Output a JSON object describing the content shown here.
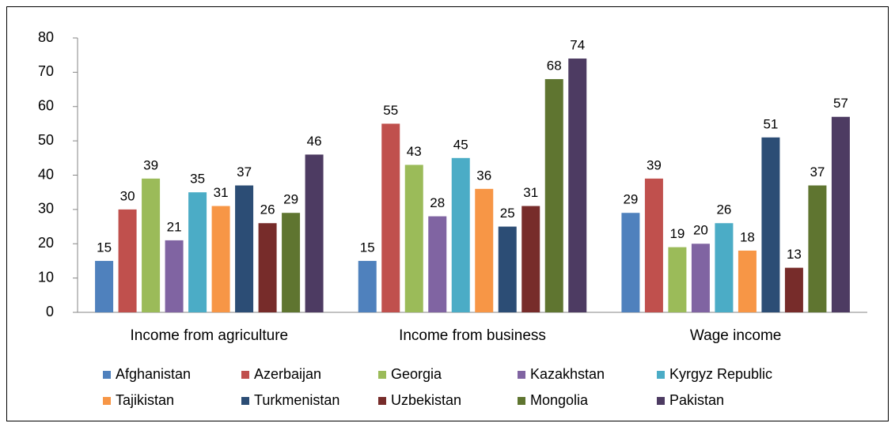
{
  "chart_data": {
    "type": "bar",
    "categories": [
      "Income from agriculture",
      "Income from business",
      "Wage income"
    ],
    "series": [
      {
        "name": "Afghanistan",
        "color": "#4f81bd",
        "values": [
          15,
          15,
          29
        ]
      },
      {
        "name": "Azerbaijan",
        "color": "#c0504d",
        "values": [
          30,
          55,
          39
        ]
      },
      {
        "name": "Georgia",
        "color": "#9bbb59",
        "values": [
          39,
          43,
          19
        ]
      },
      {
        "name": "Kazakhstan",
        "color": "#8064a2",
        "values": [
          21,
          28,
          20
        ]
      },
      {
        "name": "Kyrgyz Republic",
        "color": "#4bacc6",
        "values": [
          35,
          45,
          26
        ]
      },
      {
        "name": "Tajikistan",
        "color": "#f79646",
        "values": [
          31,
          36,
          18
        ]
      },
      {
        "name": "Turkmenistan",
        "color": "#2c4d75",
        "values": [
          37,
          25,
          51
        ]
      },
      {
        "name": "Uzbekistan",
        "color": "#772c2a",
        "values": [
          26,
          31,
          13
        ]
      },
      {
        "name": "Mongolia",
        "color": "#5f7530",
        "values": [
          29,
          68,
          37
        ]
      },
      {
        "name": "Pakistan",
        "color": "#4d3b62",
        "values": [
          46,
          74,
          57
        ]
      }
    ],
    "ylim": [
      0,
      80
    ],
    "yticks": [
      0,
      10,
      20,
      30,
      40,
      50,
      60,
      70,
      80
    ],
    "legend": "bottom",
    "grid": false
  }
}
